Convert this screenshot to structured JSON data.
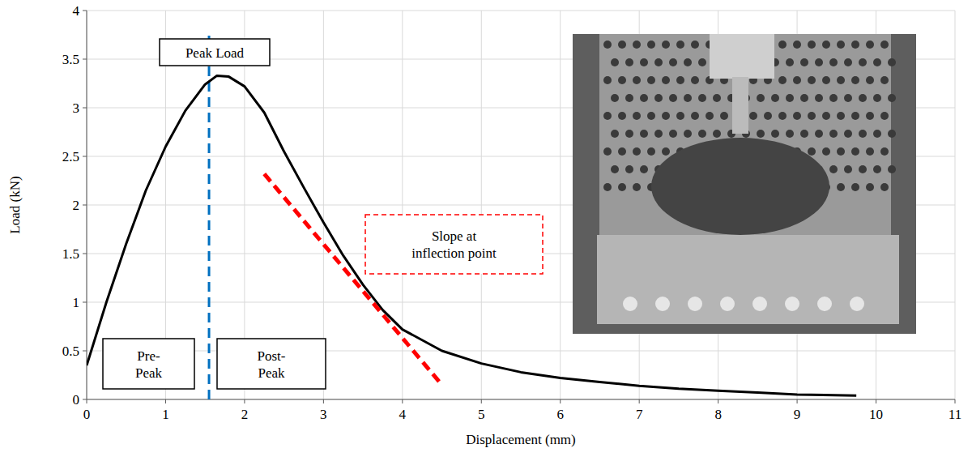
{
  "chart_data": {
    "type": "line",
    "xlabel": "Displacement (mm)",
    "ylabel": "Load (kN)",
    "x": [
      0,
      0.25,
      0.5,
      0.75,
      1,
      1.25,
      1.5,
      1.65,
      1.8,
      2,
      2.25,
      2.5,
      2.75,
      3,
      3.25,
      3.5,
      3.75,
      4,
      4.5,
      5,
      5.5,
      6,
      6.5,
      7,
      7.5,
      8,
      8.5,
      9,
      9.75
    ],
    "series": [
      {
        "color": "#000000",
        "line_style": "solid",
        "values": [
          0.35,
          1.0,
          1.6,
          2.15,
          2.6,
          2.97,
          3.24,
          3.33,
          3.32,
          3.22,
          2.95,
          2.55,
          2.18,
          1.82,
          1.48,
          1.18,
          0.92,
          0.72,
          0.5,
          0.37,
          0.28,
          0.22,
          0.18,
          0.14,
          0.11,
          0.09,
          0.07,
          0.05,
          0.04
        ]
      }
    ],
    "xlim": [
      0,
      11
    ],
    "xticks": [
      0,
      1,
      2,
      3,
      4,
      5,
      6,
      7,
      8,
      9,
      10,
      11
    ],
    "ylim": [
      0,
      4
    ],
    "yticks": [
      0,
      0.5,
      1,
      1.5,
      2,
      2.5,
      3,
      3.5,
      4
    ],
    "grid": true,
    "peak_line": {
      "x": 1.55,
      "color": "#0070c0",
      "line_style": "dashed"
    },
    "slope_line": {
      "x": [
        2.25,
        4.5
      ],
      "values": [
        2.32,
        0.15
      ],
      "color": "#ff0000",
      "line_style": "dashed"
    },
    "annotations": {
      "peak": "Peak Load",
      "pre_peak": [
        "Pre-",
        "Peak"
      ],
      "post_peak": [
        "Post-",
        "Peak"
      ],
      "slope": [
        "Slope at",
        "inflection point"
      ]
    }
  }
}
